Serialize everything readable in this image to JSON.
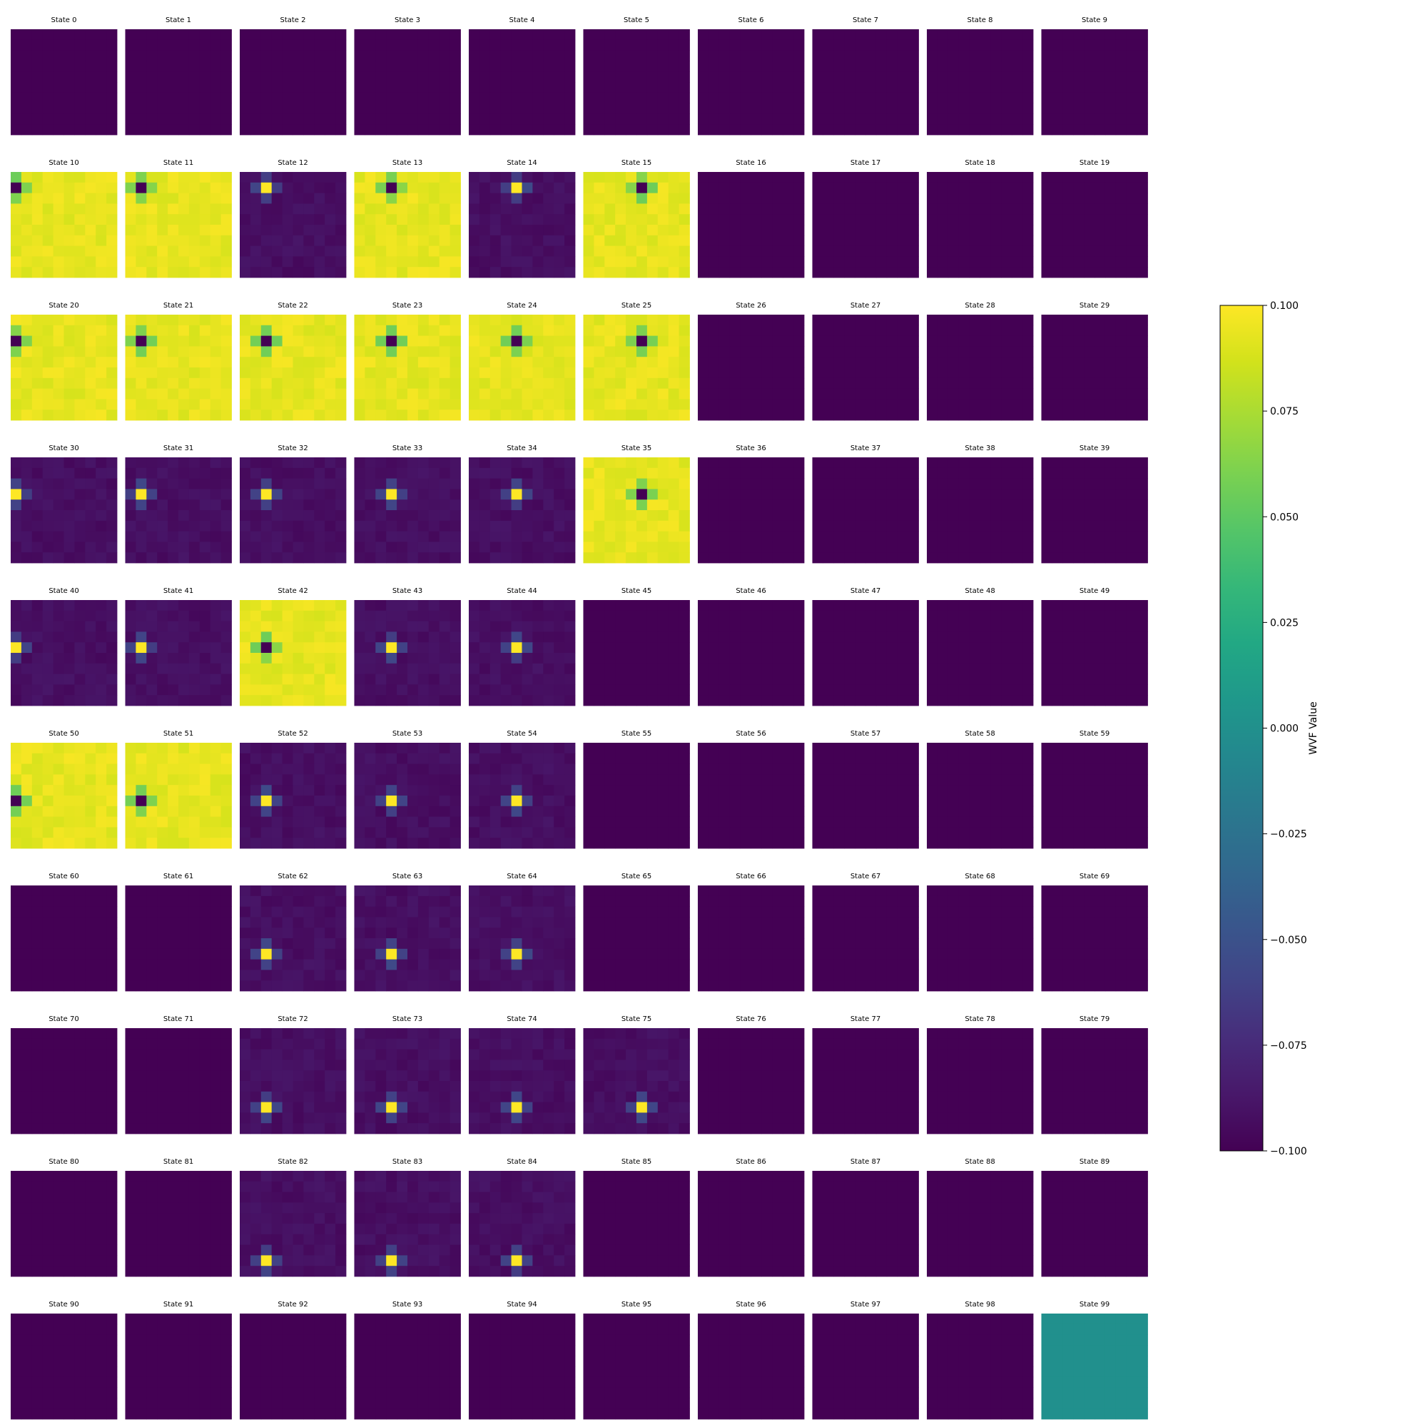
{
  "chart_data": {
    "type": "heatmap",
    "grid_rows": 10,
    "grid_cols": 10,
    "cell_grid": 10,
    "colormap": "viridis",
    "vmin": -0.1,
    "vmax": 0.1,
    "colorbar": {
      "label": "WVF Value",
      "ticks": [
        -0.1,
        -0.075,
        -0.05,
        -0.025,
        0.0,
        0.025,
        0.05,
        0.075,
        0.1
      ],
      "tick_labels": [
        "−0.100",
        "−0.075",
        "−0.050",
        "−0.025",
        "0.000",
        "0.025",
        "0.050",
        "0.075",
        "0.100"
      ]
    },
    "panel_title_prefix": "State",
    "panel_titles": [
      "State 0",
      "State 1",
      "State 2",
      "State 3",
      "State 4",
      "State 5",
      "State 6",
      "State 7",
      "State 8",
      "State 9",
      "State 10",
      "State 11",
      "State 12",
      "State 13",
      "State 14",
      "State 15",
      "State 16",
      "State 17",
      "State 18",
      "State 19",
      "State 20",
      "State 21",
      "State 22",
      "State 23",
      "State 24",
      "State 25",
      "State 26",
      "State 27",
      "State 28",
      "State 29",
      "State 30",
      "State 31",
      "State 32",
      "State 33",
      "State 34",
      "State 35",
      "State 36",
      "State 37",
      "State 38",
      "State 39",
      "State 40",
      "State 41",
      "State 42",
      "State 43",
      "State 44",
      "State 45",
      "State 46",
      "State 47",
      "State 48",
      "State 49",
      "State 50",
      "State 51",
      "State 52",
      "State 53",
      "State 54",
      "State 55",
      "State 56",
      "State 57",
      "State 58",
      "State 59",
      "State 60",
      "State 61",
      "State 62",
      "State 63",
      "State 64",
      "State 65",
      "State 66",
      "State 67",
      "State 68",
      "State 69",
      "State 70",
      "State 71",
      "State 72",
      "State 73",
      "State 74",
      "State 75",
      "State 76",
      "State 77",
      "State 78",
      "State 79",
      "State 80",
      "State 81",
      "State 82",
      "State 83",
      "State 84",
      "State 85",
      "State 86",
      "State 87",
      "State 88",
      "State 89",
      "State 90",
      "State 91",
      "State 92",
      "State 93",
      "State 94",
      "State 95",
      "State 96",
      "State 97",
      "State 98",
      "State 99"
    ],
    "uniform_value": -0.1,
    "special_uniform": [
      {
        "state": 99,
        "value": 0.0
      }
    ],
    "positive_states": [
      {
        "state": 10,
        "peak": [
          1,
          0
        ]
      },
      {
        "state": 11,
        "peak": [
          1,
          1
        ]
      },
      {
        "state": 12,
        "peak": [
          1,
          2
        ]
      },
      {
        "state": 13,
        "peak": [
          1,
          3
        ]
      },
      {
        "state": 14,
        "peak": [
          1,
          4
        ]
      },
      {
        "state": 15,
        "peak": [
          1,
          5
        ]
      },
      {
        "state": 30,
        "peak": [
          3,
          0
        ]
      },
      {
        "state": 31,
        "peak": [
          3,
          1
        ]
      },
      {
        "state": 32,
        "peak": [
          3,
          2
        ]
      },
      {
        "state": 33,
        "peak": [
          3,
          3
        ]
      },
      {
        "state": 34,
        "peak": [
          3,
          4
        ]
      },
      {
        "state": 40,
        "peak": [
          4,
          0
        ]
      },
      {
        "state": 41,
        "peak": [
          4,
          1
        ]
      },
      {
        "state": 43,
        "peak": [
          4,
          3
        ]
      },
      {
        "state": 44,
        "peak": [
          4,
          4
        ]
      },
      {
        "state": 52,
        "peak": [
          5,
          2
        ]
      },
      {
        "state": 53,
        "peak": [
          5,
          3
        ]
      },
      {
        "state": 54,
        "peak": [
          5,
          4
        ]
      },
      {
        "state": 62,
        "peak": [
          6,
          2
        ]
      },
      {
        "state": 63,
        "peak": [
          6,
          3
        ]
      },
      {
        "state": 64,
        "peak": [
          6,
          4
        ]
      },
      {
        "state": 72,
        "peak": [
          7,
          2
        ]
      },
      {
        "state": 73,
        "peak": [
          7,
          3
        ]
      },
      {
        "state": 74,
        "peak": [
          7,
          4
        ]
      },
      {
        "state": 75,
        "peak": [
          7,
          5
        ]
      },
      {
        "state": 82,
        "peak": [
          8,
          2
        ]
      },
      {
        "state": 83,
        "peak": [
          8,
          3
        ]
      },
      {
        "state": 84,
        "peak": [
          8,
          4
        ]
      }
    ],
    "negative_states": [
      {
        "state": 10,
        "trough": [
          1,
          0
        ]
      },
      {
        "state": 11,
        "trough": [
          1,
          1
        ]
      },
      {
        "state": 13,
        "trough": [
          1,
          3
        ]
      },
      {
        "state": 15,
        "trough": [
          1,
          5
        ]
      },
      {
        "state": 20,
        "trough": [
          2,
          0
        ]
      },
      {
        "state": 21,
        "trough": [
          2,
          1
        ]
      },
      {
        "state": 22,
        "trough": [
          2,
          2
        ]
      },
      {
        "state": 23,
        "trough": [
          2,
          3
        ]
      },
      {
        "state": 24,
        "trough": [
          2,
          4
        ]
      },
      {
        "state": 25,
        "trough": [
          2,
          5
        ]
      },
      {
        "state": 35,
        "trough": [
          3,
          5
        ]
      },
      {
        "state": 42,
        "trough": [
          4,
          2
        ]
      },
      {
        "state": 50,
        "trough": [
          5,
          0
        ]
      },
      {
        "state": 51,
        "trough": [
          5,
          1
        ]
      }
    ]
  }
}
